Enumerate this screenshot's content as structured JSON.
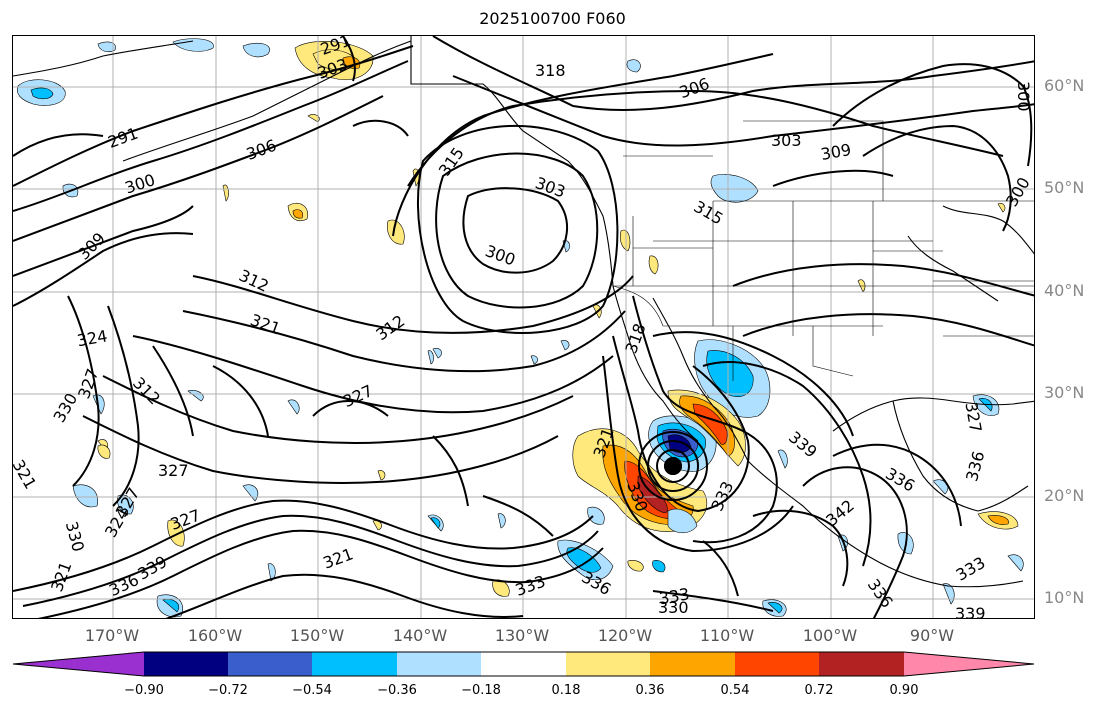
{
  "title": "2025100700 F060",
  "lat_labels": [
    "60°N",
    "50°N",
    "40°N",
    "30°N",
    "20°N",
    "10°N"
  ],
  "lon_labels": [
    "170°W",
    "160°W",
    "150°W",
    "140°W",
    "130°W",
    "120°W",
    "110°W",
    "100°W",
    "90°W"
  ],
  "colorbar": {
    "ticks": [
      "−0.90",
      "−0.72",
      "−0.54",
      "−0.36",
      "−0.18",
      "0.18",
      "0.36",
      "0.54",
      "0.72",
      "0.90"
    ],
    "colors": [
      "#9b30d0",
      "#000080",
      "#3a5fcd",
      "#00bfff",
      "#afe0ff",
      "#ffffff",
      "#ffe87c",
      "#ffa500",
      "#ff4500",
      "#b22222",
      "#ff88aa"
    ]
  },
  "contour_labels": [
    "291",
    "303",
    "318",
    "306",
    "303",
    "309",
    "300",
    "291",
    "300",
    "306",
    "315",
    "303",
    "315",
    "300",
    "309",
    "300",
    "312",
    "321",
    "312",
    "324",
    "327",
    "330",
    "312",
    "327",
    "321",
    "327",
    "327",
    "324",
    "327",
    "330",
    "321",
    "336",
    "339",
    "321",
    "333",
    "336",
    "330",
    "333",
    "330",
    "333",
    "342",
    "336",
    "339",
    "336",
    "333",
    "336",
    "339",
    "327",
    "318",
    "321"
  ],
  "colors": {
    "contour": "#000000",
    "coast": "#000000",
    "grid": "#b0b0b0",
    "axis_text": "#888888"
  }
}
